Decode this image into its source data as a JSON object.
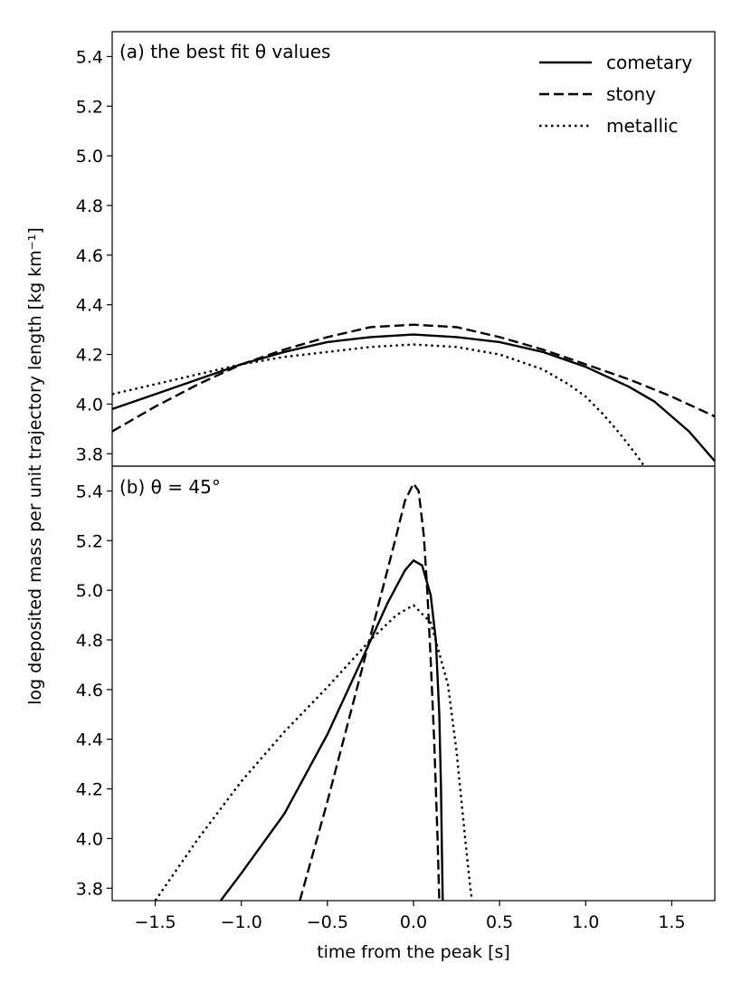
{
  "chart_data": {
    "type": "line",
    "xlabel": "time from the peak [s]",
    "ylabel": "log deposited mass per unit trajectory length [kg km⁻¹]",
    "xlim": [
      -1.75,
      1.75
    ],
    "ylim": [
      3.75,
      5.5
    ],
    "xticks": [
      -1.5,
      -1.0,
      -0.5,
      0.0,
      0.5,
      1.0,
      1.5
    ],
    "xtick_labels": [
      "−1.5",
      "−1.0",
      "−0.5",
      "0.0",
      "0.5",
      "1.0",
      "1.5"
    ],
    "yticks": [
      3.8,
      4.0,
      4.2,
      4.4,
      4.6,
      4.8,
      5.0,
      5.2,
      5.4
    ],
    "ytick_labels": [
      "3.8",
      "4.0",
      "4.2",
      "4.4",
      "4.6",
      "4.8",
      "5.0",
      "5.2",
      "5.4"
    ],
    "legend": {
      "location": "top-right",
      "entries": [
        {
          "label": "cometary",
          "style": "solid"
        },
        {
          "label": "stony",
          "style": "dashed"
        },
        {
          "label": "metallic",
          "style": "dotted"
        }
      ]
    },
    "panels": [
      {
        "title": "(a) the best fit θ values",
        "series": [
          {
            "name": "cometary",
            "style": "solid",
            "x": [
              -1.75,
              -1.5,
              -1.25,
              -1.0,
              -0.75,
              -0.5,
              -0.25,
              0.0,
              0.25,
              0.5,
              0.75,
              1.0,
              1.25,
              1.4,
              1.5,
              1.6,
              1.75
            ],
            "y": [
              3.98,
              4.04,
              4.1,
              4.16,
              4.21,
              4.25,
              4.27,
              4.28,
              4.27,
              4.25,
              4.21,
              4.15,
              4.07,
              4.01,
              3.95,
              3.89,
              3.77
            ]
          },
          {
            "name": "stony",
            "style": "dashed",
            "x": [
              -1.75,
              -1.5,
              -1.25,
              -1.0,
              -0.75,
              -0.5,
              -0.25,
              0.0,
              0.25,
              0.5,
              0.75,
              1.0,
              1.25,
              1.5,
              1.75
            ],
            "y": [
              3.89,
              3.99,
              4.08,
              4.16,
              4.22,
              4.27,
              4.31,
              4.32,
              4.31,
              4.27,
              4.22,
              4.16,
              4.1,
              4.03,
              3.95
            ]
          },
          {
            "name": "metallic",
            "style": "dotted",
            "x": [
              -1.75,
              -1.5,
              -1.25,
              -1.0,
              -0.75,
              -0.5,
              -0.25,
              0.0,
              0.25,
              0.5,
              0.75,
              0.9,
              1.0,
              1.1,
              1.2,
              1.3,
              1.34
            ],
            "y": [
              4.04,
              4.08,
              4.12,
              4.16,
              4.19,
              4.21,
              4.23,
              4.24,
              4.23,
              4.2,
              4.14,
              4.08,
              4.03,
              3.96,
              3.88,
              3.79,
              3.75
            ]
          }
        ]
      },
      {
        "title": "(b) θ = 45°",
        "series": [
          {
            "name": "cometary",
            "style": "solid",
            "x": [
              -1.12,
              -1.0,
              -0.75,
              -0.5,
              -0.3,
              -0.15,
              -0.05,
              0.0,
              0.05,
              0.1,
              0.13,
              0.15,
              0.16,
              0.165,
              0.17
            ],
            "y": [
              3.75,
              3.86,
              4.1,
              4.42,
              4.72,
              4.95,
              5.08,
              5.12,
              5.1,
              4.98,
              4.8,
              4.5,
              4.2,
              3.95,
              3.75
            ]
          },
          {
            "name": "stony",
            "style": "dashed",
            "x": [
              -0.66,
              -0.5,
              -0.3,
              -0.2,
              -0.1,
              -0.05,
              0.0,
              0.03,
              0.06,
              0.08,
              0.1,
              0.12,
              0.14,
              0.15
            ],
            "y": [
              3.75,
              4.15,
              4.68,
              4.95,
              5.22,
              5.36,
              5.43,
              5.4,
              5.22,
              5.0,
              4.72,
              4.4,
              4.0,
              3.75
            ]
          },
          {
            "name": "metallic",
            "style": "dotted",
            "x": [
              -1.5,
              -1.25,
              -1.0,
              -0.75,
              -0.5,
              -0.25,
              -0.1,
              0.0,
              0.1,
              0.2,
              0.25,
              0.3,
              0.33,
              0.34
            ],
            "y": [
              3.75,
              4.0,
              4.23,
              4.43,
              4.61,
              4.8,
              4.9,
              4.94,
              4.87,
              4.62,
              4.35,
              4.0,
              3.8,
              3.75
            ]
          }
        ]
      }
    ]
  }
}
